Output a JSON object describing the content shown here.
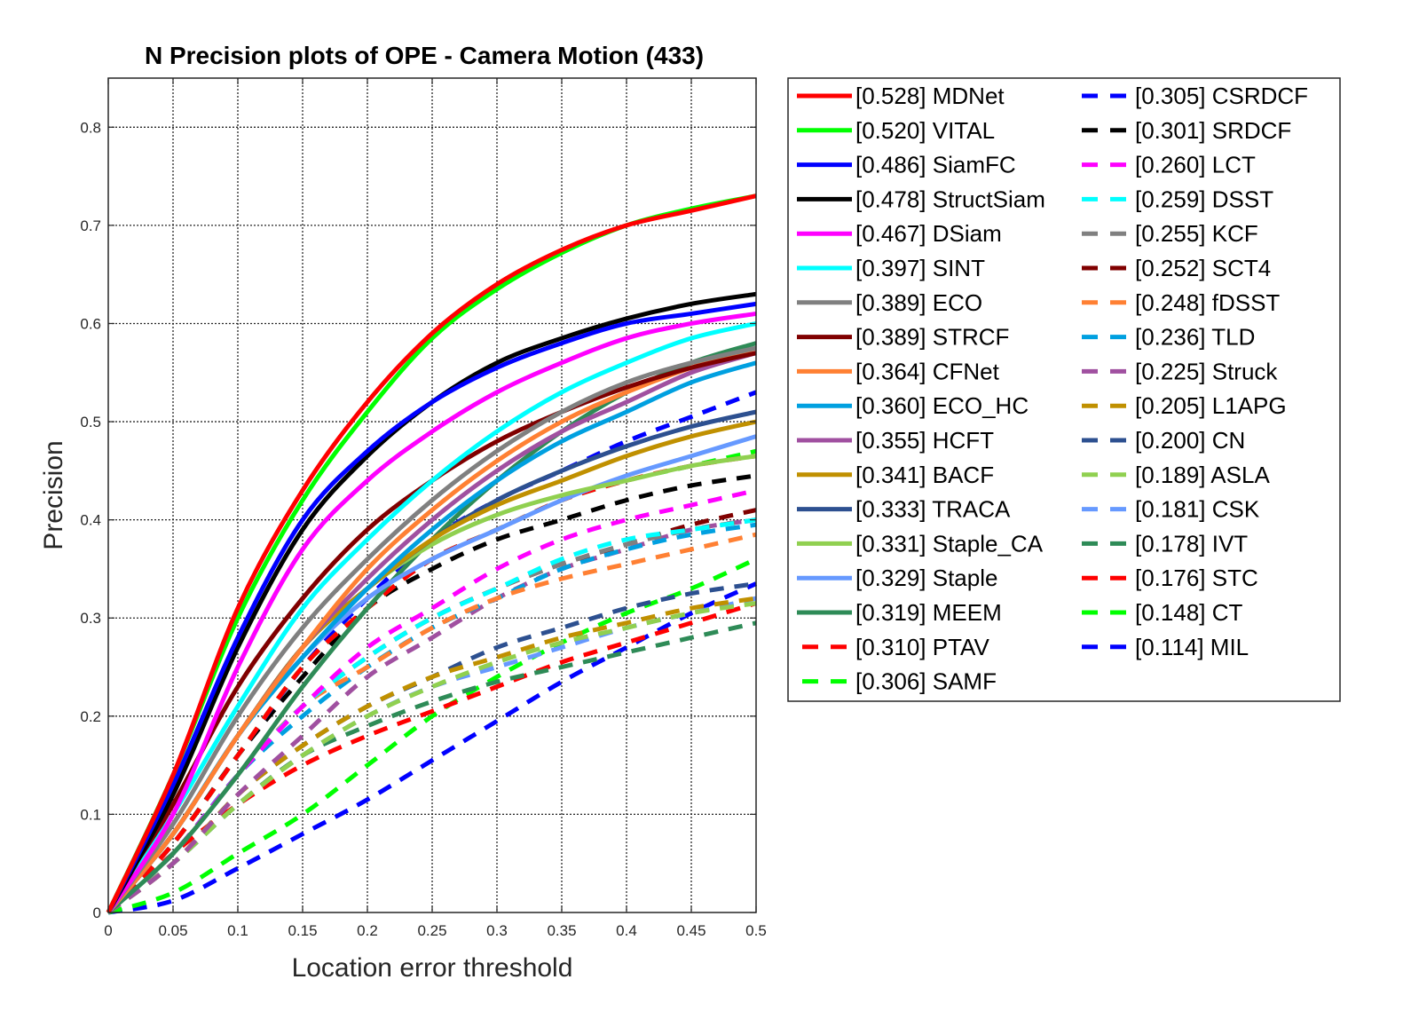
{
  "chart_data": {
    "type": "line",
    "title": "N Precision plots of OPE - Camera Motion (433)",
    "xlabel": "Location error threshold",
    "ylabel": "Precision",
    "xlim": [
      0,
      0.5
    ],
    "ylim": [
      0,
      0.85
    ],
    "xticks": [
      "0",
      "0.05",
      "0.1",
      "0.15",
      "0.2",
      "0.25",
      "0.3",
      "0.35",
      "0.4",
      "0.45",
      "0.5"
    ],
    "yticks": [
      "0",
      "0.1",
      "0.2",
      "0.3",
      "0.4",
      "0.5",
      "0.6",
      "0.7",
      "0.8"
    ],
    "grid": true,
    "legend_position": "outside-right",
    "x": [
      0,
      0.05,
      0.1,
      0.15,
      0.2,
      0.25,
      0.3,
      0.35,
      0.4,
      0.45,
      0.5
    ],
    "series": [
      {
        "name": "[0.528] MDNet",
        "color": "#ff0000",
        "dashed": false,
        "values": [
          0.0,
          0.14,
          0.31,
          0.43,
          0.52,
          0.59,
          0.64,
          0.675,
          0.7,
          0.715,
          0.73
        ]
      },
      {
        "name": "[0.520] VITAL",
        "color": "#00ff00",
        "dashed": false,
        "values": [
          0.0,
          0.14,
          0.3,
          0.42,
          0.51,
          0.585,
          0.635,
          0.672,
          0.7,
          0.717,
          0.73
        ]
      },
      {
        "name": "[0.486] SiamFC",
        "color": "#0000ff",
        "dashed": false,
        "values": [
          0.0,
          0.13,
          0.28,
          0.4,
          0.47,
          0.52,
          0.555,
          0.58,
          0.6,
          0.61,
          0.62
        ]
      },
      {
        "name": "[0.478] StructSiam",
        "color": "#000000",
        "dashed": false,
        "values": [
          0.0,
          0.12,
          0.27,
          0.39,
          0.465,
          0.52,
          0.56,
          0.585,
          0.605,
          0.62,
          0.63
        ]
      },
      {
        "name": "[0.467] DSiam",
        "color": "#ff00ff",
        "dashed": false,
        "values": [
          0.0,
          0.1,
          0.25,
          0.37,
          0.44,
          0.49,
          0.53,
          0.56,
          0.585,
          0.6,
          0.61
        ]
      },
      {
        "name": "[0.397] SINT",
        "color": "#00ffff",
        "dashed": false,
        "values": [
          0.0,
          0.1,
          0.21,
          0.31,
          0.38,
          0.44,
          0.49,
          0.53,
          0.56,
          0.585,
          0.6
        ]
      },
      {
        "name": "[0.389] ECO",
        "color": "#808080",
        "dashed": false,
        "values": [
          0.0,
          0.09,
          0.2,
          0.29,
          0.36,
          0.42,
          0.47,
          0.51,
          0.54,
          0.56,
          0.575
        ]
      },
      {
        "name": "[0.389] STRCF",
        "color": "#800000",
        "dashed": false,
        "values": [
          0.0,
          0.11,
          0.23,
          0.32,
          0.39,
          0.44,
          0.48,
          0.51,
          0.535,
          0.555,
          0.57
        ]
      },
      {
        "name": "[0.364] CFNet",
        "color": "#ff8033",
        "dashed": false,
        "values": [
          0.0,
          0.08,
          0.18,
          0.27,
          0.35,
          0.41,
          0.46,
          0.5,
          0.53,
          0.555,
          0.575
        ]
      },
      {
        "name": "[0.360] ECO_HC",
        "color": "#00a0e0",
        "dashed": false,
        "values": [
          0.0,
          0.08,
          0.18,
          0.26,
          0.33,
          0.39,
          0.44,
          0.48,
          0.51,
          0.54,
          0.56
        ]
      },
      {
        "name": "[0.355] HCFT",
        "color": "#a050a0",
        "dashed": false,
        "values": [
          0.0,
          0.08,
          0.18,
          0.27,
          0.34,
          0.4,
          0.45,
          0.49,
          0.52,
          0.55,
          0.57
        ]
      },
      {
        "name": "[0.341] BACF",
        "color": "#c09000",
        "dashed": false,
        "values": [
          0.0,
          0.08,
          0.18,
          0.27,
          0.33,
          0.38,
          0.415,
          0.44,
          0.465,
          0.485,
          0.5
        ]
      },
      {
        "name": "[0.333] TRACA",
        "color": "#2d5090",
        "dashed": false,
        "values": [
          0.0,
          0.08,
          0.18,
          0.27,
          0.33,
          0.38,
          0.42,
          0.45,
          0.475,
          0.495,
          0.51
        ]
      },
      {
        "name": "[0.331] Staple_CA",
        "color": "#90d050",
        "dashed": false,
        "values": [
          0.0,
          0.08,
          0.18,
          0.27,
          0.33,
          0.375,
          0.405,
          0.425,
          0.44,
          0.455,
          0.465
        ]
      },
      {
        "name": "[0.329] Staple",
        "color": "#6699ff",
        "dashed": false,
        "values": [
          0.0,
          0.08,
          0.18,
          0.26,
          0.32,
          0.36,
          0.39,
          0.42,
          0.445,
          0.465,
          0.485
        ]
      },
      {
        "name": "[0.319] MEEM",
        "color": "#2e8b57",
        "dashed": false,
        "values": [
          0.0,
          0.06,
          0.14,
          0.23,
          0.31,
          0.38,
          0.44,
          0.49,
          0.53,
          0.56,
          0.58
        ]
      },
      {
        "name": "[0.310] PTAV",
        "color": "#ff0000",
        "dashed": true,
        "values": [
          0.0,
          0.07,
          0.16,
          0.25,
          0.31,
          0.36,
          0.39,
          0.42,
          0.44,
          0.455,
          0.465
        ]
      },
      {
        "name": "[0.306] SAMF",
        "color": "#00ff00",
        "dashed": true,
        "values": [
          0.0,
          0.07,
          0.16,
          0.25,
          0.31,
          0.36,
          0.39,
          0.42,
          0.44,
          0.455,
          0.47
        ]
      },
      {
        "name": "[0.305] CSRDCF",
        "color": "#0000ff",
        "dashed": true,
        "values": [
          0.0,
          0.07,
          0.16,
          0.25,
          0.32,
          0.38,
          0.42,
          0.45,
          0.48,
          0.505,
          0.53
        ]
      },
      {
        "name": "[0.301] SRDCF",
        "color": "#000000",
        "dashed": true,
        "values": [
          0.0,
          0.07,
          0.16,
          0.24,
          0.31,
          0.35,
          0.38,
          0.4,
          0.42,
          0.435,
          0.445
        ]
      },
      {
        "name": "[0.260] LCT",
        "color": "#ff00ff",
        "dashed": true,
        "values": [
          0.0,
          0.06,
          0.14,
          0.21,
          0.27,
          0.31,
          0.35,
          0.38,
          0.4,
          0.415,
          0.43
        ]
      },
      {
        "name": "[0.259] DSST",
        "color": "#00ffff",
        "dashed": true,
        "values": [
          0.0,
          0.06,
          0.14,
          0.21,
          0.26,
          0.3,
          0.33,
          0.36,
          0.38,
          0.39,
          0.4
        ]
      },
      {
        "name": "[0.255] KCF",
        "color": "#808080",
        "dashed": true,
        "values": [
          0.0,
          0.06,
          0.14,
          0.21,
          0.26,
          0.3,
          0.33,
          0.355,
          0.375,
          0.39,
          0.4
        ]
      },
      {
        "name": "[0.252] SCT4",
        "color": "#800000",
        "dashed": true,
        "values": [
          0.0,
          0.06,
          0.14,
          0.21,
          0.26,
          0.3,
          0.33,
          0.355,
          0.375,
          0.395,
          0.41
        ]
      },
      {
        "name": "[0.248] fDSST",
        "color": "#ff8033",
        "dashed": true,
        "values": [
          0.0,
          0.06,
          0.14,
          0.21,
          0.25,
          0.29,
          0.32,
          0.34,
          0.355,
          0.37,
          0.385
        ]
      },
      {
        "name": "[0.236] TLD",
        "color": "#00a0e0",
        "dashed": true,
        "values": [
          0.0,
          0.06,
          0.14,
          0.2,
          0.25,
          0.29,
          0.32,
          0.35,
          0.37,
          0.385,
          0.395
        ]
      },
      {
        "name": "[0.225] Struck",
        "color": "#a050a0",
        "dashed": true,
        "values": [
          0.0,
          0.05,
          0.12,
          0.18,
          0.24,
          0.28,
          0.32,
          0.35,
          0.37,
          0.39,
          0.4
        ]
      },
      {
        "name": "[0.205] L1APG",
        "color": "#c09000",
        "dashed": true,
        "values": [
          0.0,
          0.05,
          0.12,
          0.17,
          0.21,
          0.24,
          0.26,
          0.28,
          0.295,
          0.31,
          0.32
        ]
      },
      {
        "name": "[0.200] CN",
        "color": "#2d5090",
        "dashed": true,
        "values": [
          0.0,
          0.05,
          0.12,
          0.17,
          0.21,
          0.24,
          0.27,
          0.29,
          0.31,
          0.325,
          0.335
        ]
      },
      {
        "name": "[0.189] ASLA",
        "color": "#90d050",
        "dashed": true,
        "values": [
          0.0,
          0.05,
          0.11,
          0.16,
          0.2,
          0.23,
          0.255,
          0.275,
          0.29,
          0.305,
          0.315
        ]
      },
      {
        "name": "[0.181] CSK",
        "color": "#6699ff",
        "dashed": true,
        "values": [
          0.0,
          0.05,
          0.11,
          0.16,
          0.2,
          0.23,
          0.25,
          0.27,
          0.29,
          0.305,
          0.32
        ]
      },
      {
        "name": "[0.178] IVT",
        "color": "#2e8b57",
        "dashed": true,
        "values": [
          0.0,
          0.05,
          0.11,
          0.16,
          0.19,
          0.215,
          0.235,
          0.25,
          0.265,
          0.28,
          0.295
        ]
      },
      {
        "name": "[0.176] STC",
        "color": "#ff0000",
        "dashed": true,
        "values": [
          0.0,
          0.06,
          0.11,
          0.15,
          0.18,
          0.205,
          0.23,
          0.255,
          0.275,
          0.295,
          0.315
        ]
      },
      {
        "name": "[0.148] CT",
        "color": "#00ff00",
        "dashed": true,
        "values": [
          0.0,
          0.02,
          0.06,
          0.1,
          0.15,
          0.2,
          0.24,
          0.275,
          0.305,
          0.33,
          0.36
        ]
      },
      {
        "name": "[0.114] MIL",
        "color": "#0000ff",
        "dashed": true,
        "values": [
          0.0,
          0.012,
          0.045,
          0.08,
          0.115,
          0.155,
          0.195,
          0.235,
          0.27,
          0.305,
          0.335
        ]
      }
    ]
  }
}
